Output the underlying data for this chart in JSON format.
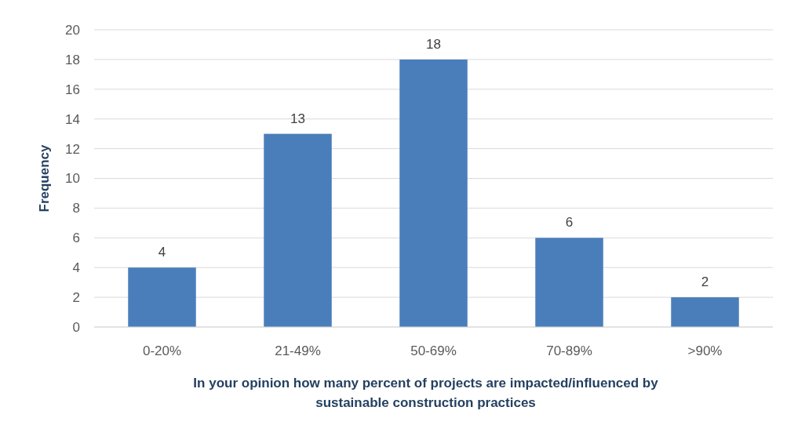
{
  "chart_data": {
    "type": "bar",
    "xlabel": "In your opinion how many percent of projects are impacted/influenced by sustainable construction practices",
    "ylabel": "Frequency",
    "categories": [
      "0-20%",
      "21-49%",
      "50-69%",
      "70-89%",
      ">90%"
    ],
    "values": [
      4,
      13,
      18,
      6,
      2
    ],
    "color": "#4a7ebb",
    "ylim": [
      0,
      20
    ],
    "yticks": [
      0,
      2,
      4,
      6,
      8,
      10,
      12,
      14,
      16,
      18,
      20
    ],
    "grid": "y",
    "data_labels": true
  }
}
